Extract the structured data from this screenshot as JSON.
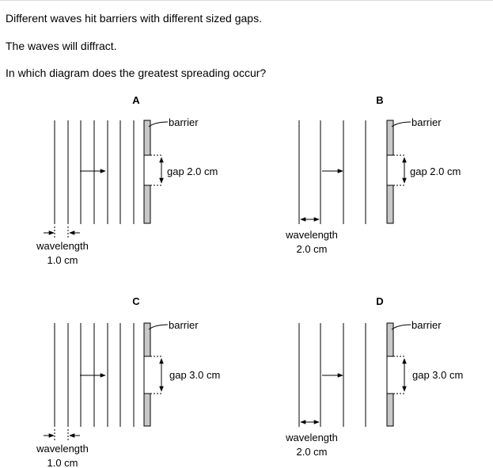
{
  "question": {
    "line1": "Different waves hit barriers with different sized gaps.",
    "line2": "The waves will diffract.",
    "line3": "In which diagram does the greatest spreading occur?"
  },
  "diagrams": {
    "A": {
      "letter": "A",
      "barrier_label": "barrier",
      "gap_label": "gap 2.0 cm",
      "wavelength_label": "wavelength",
      "wavelength_value": "1.0 cm"
    },
    "B": {
      "letter": "B",
      "barrier_label": "barrier",
      "gap_label": "gap 2.0 cm",
      "wavelength_label": "wavelength",
      "wavelength_value": "2.0 cm"
    },
    "C": {
      "letter": "C",
      "barrier_label": "barrier",
      "gap_label": "gap 3.0 cm",
      "wavelength_label": "wavelength",
      "wavelength_value": "1.0 cm"
    },
    "D": {
      "letter": "D",
      "barrier_label": "barrier",
      "gap_label": "gap 3.0 cm",
      "wavelength_label": "wavelength",
      "wavelength_value": "2.0 cm"
    }
  },
  "colors": {
    "line": "#000000",
    "barrier_fill": "#c8c8c8",
    "text": "#000000"
  }
}
